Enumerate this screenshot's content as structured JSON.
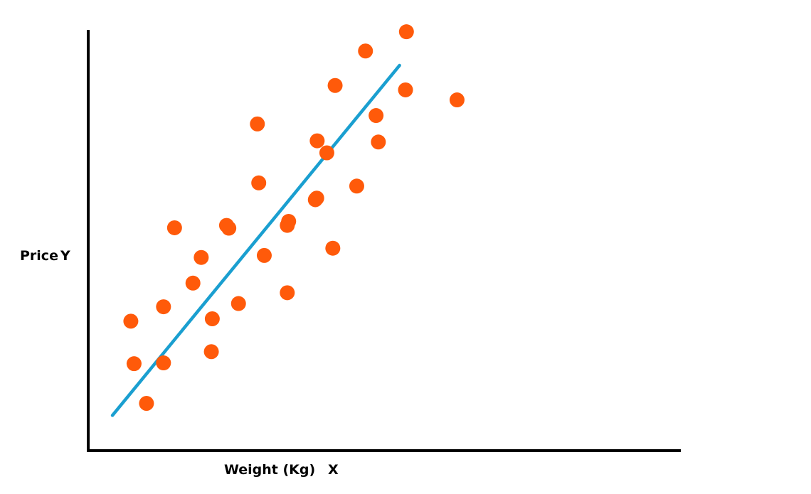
{
  "chart_data": {
    "type": "scatter",
    "title": "",
    "xlabel": "Weight (Kg)",
    "xlabel_symbol": "X",
    "ylabel": "Price",
    "ylabel_symbol": "Y",
    "xlim": [
      0,
      100
    ],
    "ylim": [
      0,
      100
    ],
    "grid": false,
    "point_color": "#ff5a0a",
    "line_color": "#1a9fd0",
    "axis_color": "#000000",
    "points": [
      {
        "x": 8.8,
        "y": 29.1
      },
      {
        "x": 9.5,
        "y": 18.5
      },
      {
        "x": 12.2,
        "y": 8.6
      },
      {
        "x": 15.9,
        "y": 32.7
      },
      {
        "x": 15.9,
        "y": 18.7
      },
      {
        "x": 18.3,
        "y": 52.4
      },
      {
        "x": 22.3,
        "y": 38.6
      },
      {
        "x": 24.1,
        "y": 45.0
      },
      {
        "x": 26.3,
        "y": 21.5
      },
      {
        "x": 26.5,
        "y": 29.7
      },
      {
        "x": 29.6,
        "y": 53.0
      },
      {
        "x": 30.1,
        "y": 52.3
      },
      {
        "x": 32.2,
        "y": 33.5
      },
      {
        "x": 36.3,
        "y": 78.3
      },
      {
        "x": 36.6,
        "y": 63.6
      },
      {
        "x": 37.8,
        "y": 45.5
      },
      {
        "x": 42.8,
        "y": 36.2
      },
      {
        "x": 42.8,
        "y": 53.0
      },
      {
        "x": 43.1,
        "y": 54.0
      },
      {
        "x": 48.9,
        "y": 59.4
      },
      {
        "x": 49.2,
        "y": 59.8
      },
      {
        "x": 49.3,
        "y": 74.1
      },
      {
        "x": 51.4,
        "y": 71.1
      },
      {
        "x": 52.7,
        "y": 47.3
      },
      {
        "x": 53.2,
        "y": 87.9
      },
      {
        "x": 57.9,
        "y": 62.8
      },
      {
        "x": 59.8,
        "y": 96.5
      },
      {
        "x": 62.1,
        "y": 80.4
      },
      {
        "x": 62.6,
        "y": 73.8
      },
      {
        "x": 68.7,
        "y": 101.3
      },
      {
        "x": 68.5,
        "y": 86.8
      },
      {
        "x": 79.7,
        "y": 84.3
      }
    ],
    "trendline": {
      "x": [
        4.8,
        67.2
      ],
      "y": [
        5.6,
        92.9
      ]
    }
  }
}
